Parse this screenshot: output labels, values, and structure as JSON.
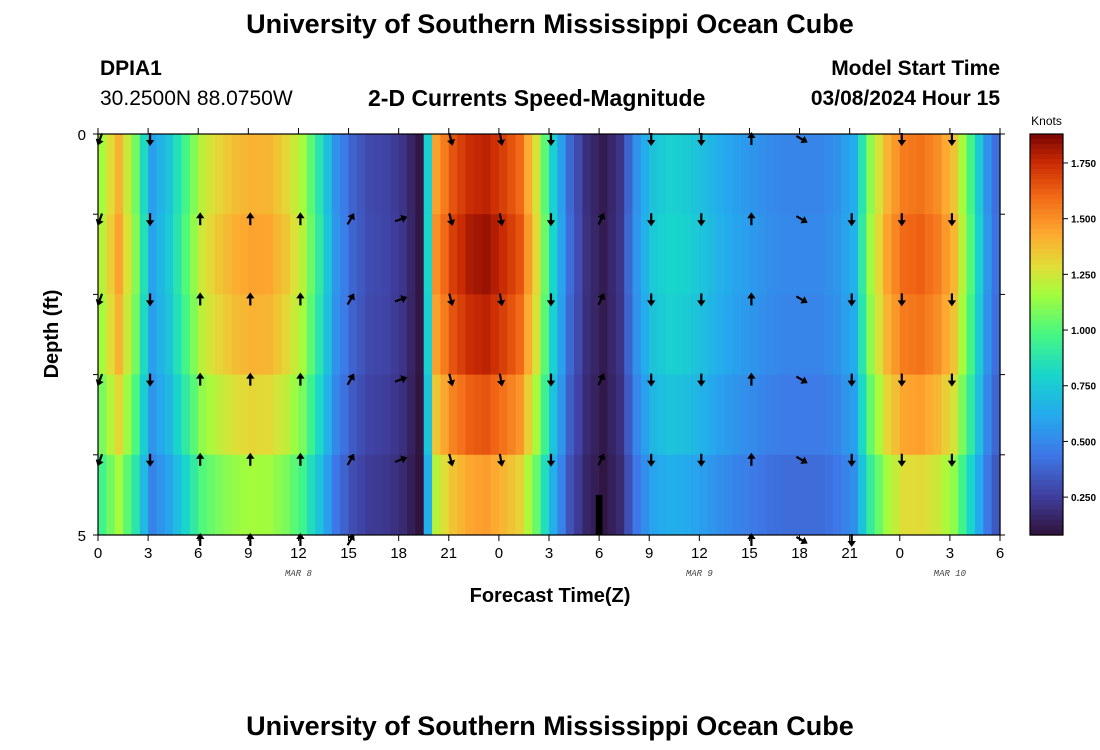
{
  "page": {
    "title_top": "University of Southern Mississippi Ocean Cube",
    "title_bottom": "University of Southern Mississippi Ocean Cube",
    "station_id": "DPIA1",
    "station_coords": "30.2500N  88.0750W",
    "plot_title": "2-D Currents Speed-Magnitude",
    "model_start_label": "Model Start Time",
    "model_start_value": "03/08/2024 Hour 15"
  },
  "chart_data": {
    "type": "heatmap",
    "title": "2-D Currents Speed-Magnitude",
    "xlabel": "Forecast Time(Z)",
    "ylabel": "Depth (ft)",
    "colorbar_label": "Knots",
    "colorbar_ticks": [
      "1.750",
      "1.500",
      "1.250",
      "1.000",
      "0.750",
      "0.500",
      "0.250"
    ],
    "colorbar_tick_values": [
      1.75,
      1.5,
      1.25,
      1.0,
      0.75,
      0.5,
      0.25
    ],
    "colorbar_range": [
      0.08,
      1.88
    ],
    "x_tick_labels": [
      "0",
      "3",
      "6",
      "9",
      "12",
      "15",
      "18",
      "21",
      "0",
      "3",
      "6",
      "9",
      "12",
      "15",
      "18",
      "21",
      "0",
      "3",
      "6"
    ],
    "date_labels": [
      {
        "label": "MAR 8",
        "hour": 12
      },
      {
        "label": "MAR 9",
        "hour": 36
      },
      {
        "label": "MAR 10",
        "hour": 51
      }
    ],
    "x_range_hours": [
      0,
      54
    ],
    "y_tick_labels": [
      "0",
      "5"
    ],
    "depth_range_ft": [
      0,
      5
    ],
    "depth_levels": 5,
    "speed_profile": {
      "hours": [
        0,
        1,
        2,
        3,
        4,
        5,
        6,
        7,
        8,
        9,
        10,
        11,
        12,
        13,
        14,
        15,
        16,
        17,
        18,
        19,
        20,
        21,
        22,
        23,
        24,
        25,
        26,
        27,
        28,
        29,
        30,
        31,
        32,
        33,
        34,
        35,
        36,
        37,
        38,
        39,
        40,
        41,
        42,
        43,
        44,
        45,
        46,
        47,
        48,
        49,
        50,
        51,
        52,
        53,
        54
      ],
      "knots": [
        1.2,
        1.45,
        1.1,
        0.6,
        0.75,
        1.0,
        1.25,
        1.35,
        1.42,
        1.45,
        1.44,
        1.35,
        1.2,
        0.9,
        0.55,
        0.38,
        0.3,
        0.28,
        0.22,
        0.1,
        1.5,
        1.7,
        1.8,
        1.83,
        1.75,
        1.65,
        1.3,
        0.8,
        0.4,
        0.2,
        0.12,
        0.22,
        0.55,
        0.75,
        0.8,
        0.78,
        0.72,
        0.65,
        0.6,
        0.56,
        0.52,
        0.5,
        0.5,
        0.5,
        0.55,
        0.65,
        1.15,
        1.45,
        1.6,
        1.62,
        1.55,
        1.4,
        1.0,
        0.55,
        0.3
      ]
    },
    "depth_speed_factor": [
      0.97,
      1.0,
      0.97,
      0.9,
      0.8
    ],
    "arrows": {
      "hours": [
        0,
        3,
        6,
        9,
        12,
        15,
        18,
        21,
        24,
        27,
        30,
        33,
        36,
        39,
        42,
        45,
        48,
        51
      ],
      "directions_deg": [
        200,
        180,
        0,
        0,
        0,
        30,
        70,
        165,
        170,
        180,
        25,
        180,
        180,
        0,
        120,
        180,
        180,
        180
      ],
      "missing": [
        {
          "hour": 0,
          "depth_level": 5
        },
        {
          "hour": 3,
          "depth_level": 5
        },
        {
          "hour": 6,
          "depth_level": 0
        },
        {
          "hour": 9,
          "depth_level": 0
        },
        {
          "hour": 12,
          "depth_level": 0
        },
        {
          "hour": 15,
          "depth_level": 0
        },
        {
          "hour": 18,
          "depth_level": 0
        },
        {
          "hour": 18,
          "depth_level": 5
        },
        {
          "hour": 21,
          "depth_level": 5
        },
        {
          "hour": 24,
          "depth_level": 5
        },
        {
          "hour": 27,
          "depth_level": 5
        },
        {
          "hour": 30,
          "depth_level": 0
        },
        {
          "hour": 30,
          "depth_level": 5
        },
        {
          "hour": 33,
          "depth_level": 5
        },
        {
          "hour": 36,
          "depth_level": 5
        },
        {
          "hour": 45,
          "depth_level": 0
        },
        {
          "hour": 48,
          "depth_level": 5
        },
        {
          "hour": 51,
          "depth_level": 5
        }
      ]
    }
  }
}
